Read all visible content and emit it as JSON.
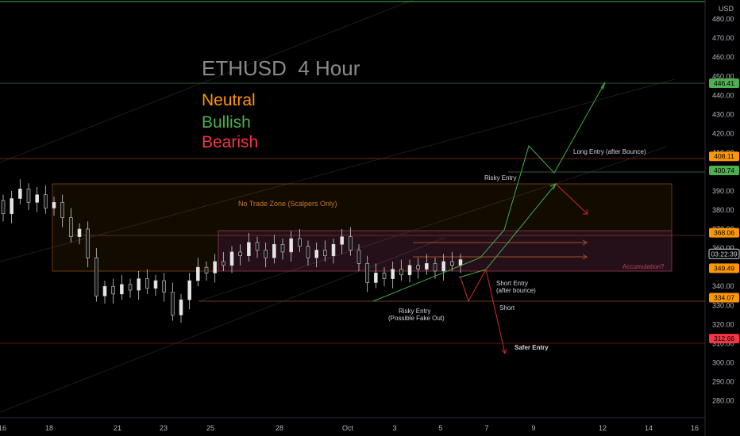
{
  "chart_data": {
    "type": "candlestick",
    "title": "ETHUSD  4 Hour",
    "legend": [
      {
        "label": "Neutral",
        "color": "#ff9800"
      },
      {
        "label": "Bullish",
        "color": "#4caf50"
      },
      {
        "label": "Bearish",
        "color": "#f23645"
      }
    ],
    "currency": "USD",
    "ylim": [
      272,
      490
    ],
    "y_ticks": [
      280,
      290,
      300,
      310,
      320,
      330,
      340,
      350,
      360,
      370,
      380,
      390,
      400,
      410,
      420,
      430,
      440,
      450,
      460,
      470,
      480
    ],
    "x_ticks": [
      "16",
      "18",
      "21",
      "23",
      "25",
      "28",
      "Oct",
      "3",
      "5",
      "7",
      "9",
      "12",
      "14",
      "16"
    ],
    "price_labels": [
      {
        "value": "446.41",
        "price": 446.41,
        "color": "#4caf50"
      },
      {
        "value": "408.11",
        "price": 408.11,
        "color": "#ff9800"
      },
      {
        "value": "400.74",
        "price": 400.74,
        "color": "#4caf50"
      },
      {
        "value": "368.06",
        "price": 368.06,
        "color": "#ff9800"
      },
      {
        "value": "03:22:39",
        "price": 357,
        "color": "#000000"
      },
      {
        "value": "349.49",
        "price": 349.49,
        "color": "#ff9800"
      },
      {
        "value": "334.07",
        "price": 334.07,
        "color": "#ff9800"
      },
      {
        "value": "312.66",
        "price": 312.66,
        "color": "#f23645"
      }
    ],
    "zones": [
      {
        "label": "No Trade Zone (Scalpers Only)",
        "top": 394,
        "bottom": 349.5
      },
      {
        "label": "Accumulation?",
        "top": 370,
        "bottom": 349.5
      }
    ],
    "annotations": [
      "Long Entry (after Bounce)",
      "Risky Entry",
      "Short Entry",
      "(after bounce)",
      "Short",
      "Risky Entry",
      "(Possible Fake Out)",
      "Safer Entry"
    ],
    "candles_approx": [
      [
        385,
        378
      ],
      [
        378,
        386
      ],
      [
        386,
        391
      ],
      [
        391,
        384
      ],
      [
        384,
        388
      ],
      [
        388,
        381
      ],
      [
        381,
        384
      ],
      [
        384,
        376
      ],
      [
        376,
        366
      ],
      [
        366,
        370
      ],
      [
        370,
        355
      ],
      [
        355,
        335
      ],
      [
        335,
        340
      ],
      [
        340,
        336
      ],
      [
        336,
        341
      ],
      [
        341,
        338
      ],
      [
        338,
        344
      ],
      [
        344,
        339
      ],
      [
        339,
        343
      ],
      [
        343,
        337
      ],
      [
        337,
        325
      ],
      [
        325,
        333
      ],
      [
        333,
        343
      ],
      [
        343,
        350
      ],
      [
        350,
        347
      ],
      [
        347,
        353
      ],
      [
        353,
        351
      ],
      [
        351,
        358
      ],
      [
        358,
        356
      ],
      [
        356,
        363
      ],
      [
        363,
        359
      ],
      [
        359,
        355
      ],
      [
        355,
        362
      ],
      [
        362,
        358
      ],
      [
        358,
        365
      ],
      [
        365,
        361
      ],
      [
        361,
        355
      ],
      [
        355,
        359
      ],
      [
        359,
        356
      ],
      [
        356,
        362
      ],
      [
        362,
        366
      ],
      [
        366,
        359
      ],
      [
        359,
        352
      ],
      [
        352,
        342
      ],
      [
        342,
        347
      ],
      [
        347,
        344
      ],
      [
        344,
        349
      ],
      [
        349,
        346
      ],
      [
        346,
        351
      ],
      [
        351,
        349
      ],
      [
        349,
        352
      ],
      [
        352,
        348
      ],
      [
        348,
        353
      ],
      [
        353,
        351
      ],
      [
        351,
        354
      ]
    ]
  }
}
